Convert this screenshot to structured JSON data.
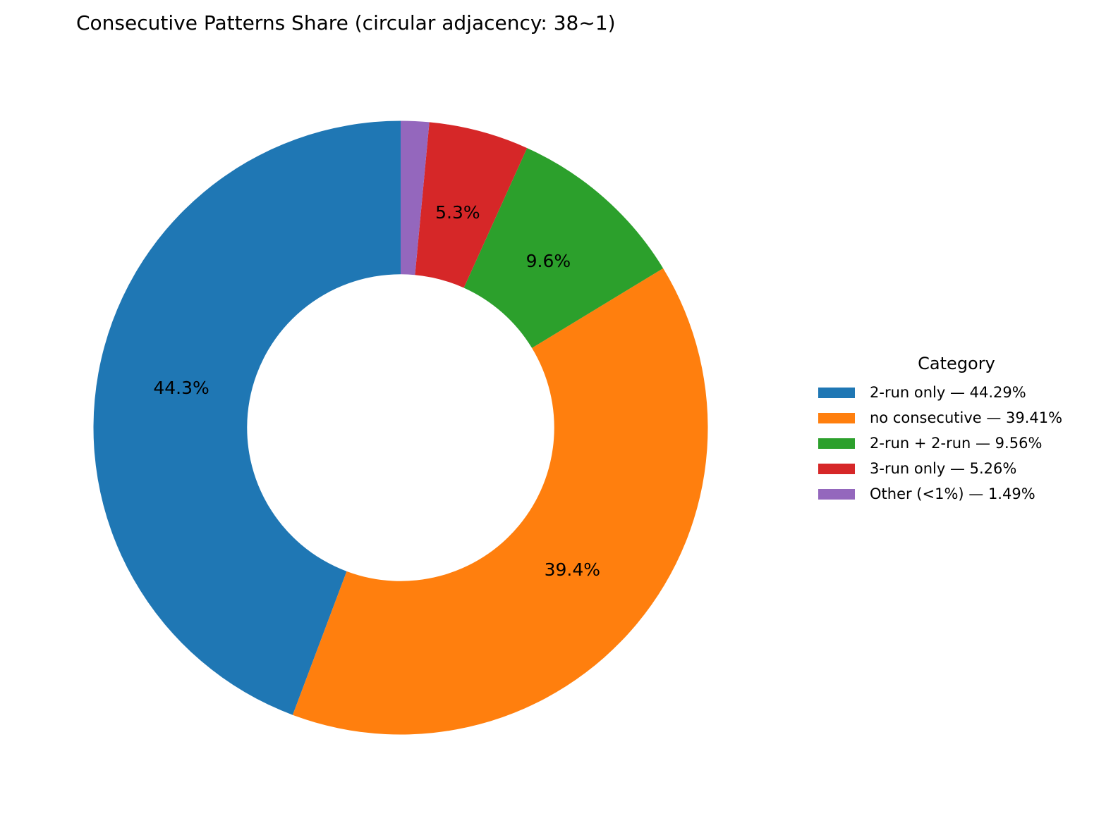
{
  "title": "Consecutive Patterns Share (circular adjacency: 38~1)",
  "background_color": "#ffffff",
  "text_color": "#000000",
  "legend": {
    "title": "Category",
    "position": "center right",
    "frame": false
  },
  "chart_data": {
    "type": "pie",
    "subtype": "donut",
    "title": "Consecutive Patterns Share (circular adjacency: 38~1)",
    "legend_title": "Category",
    "legend_position": "center right",
    "start_angle_deg": 90,
    "direction": "counterclockwise",
    "donut_hole_ratio": 0.5,
    "slices": [
      {
        "label": "2-run only",
        "value": 44.29,
        "pct_label": "44.3%",
        "color": "#1f77b4",
        "legend_label": "2-run only — 44.29%"
      },
      {
        "label": "no consecutive",
        "value": 39.41,
        "pct_label": "39.4%",
        "color": "#ff7f0e",
        "legend_label": "no consecutive — 39.41%"
      },
      {
        "label": "2-run + 2-run",
        "value": 9.56,
        "pct_label": "9.6%",
        "color": "#2ca02c",
        "legend_label": "2-run + 2-run — 9.56%"
      },
      {
        "label": "3-run only",
        "value": 5.26,
        "pct_label": "5.3%",
        "color": "#d62728",
        "legend_label": "3-run only — 5.26%"
      },
      {
        "label": "Other (<1%)",
        "value": 1.49,
        "pct_label": "",
        "color": "#9467bd",
        "legend_label": "Other (<1%) — 1.49%"
      }
    ]
  }
}
